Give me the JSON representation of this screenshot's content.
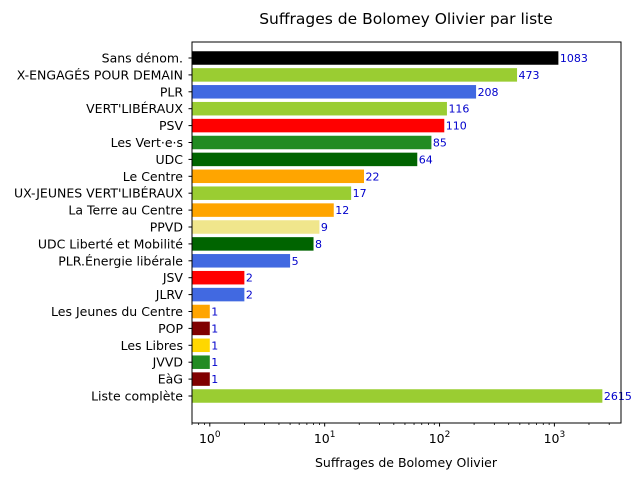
{
  "chart_data": {
    "type": "bar",
    "orientation": "horizontal",
    "title": "Suffrages de Bolomey Olivier par liste",
    "xlabel": "Suffrages de Bolomey Olivier",
    "ylabel": "",
    "xscale": "log",
    "xlim": [
      0.7,
      3800
    ],
    "xticks": [
      {
        "value": 1,
        "base": "10",
        "exp": "0"
      },
      {
        "value": 10,
        "base": "10",
        "exp": "1"
      },
      {
        "value": 100,
        "base": "10",
        "exp": "2"
      },
      {
        "value": 1000,
        "base": "10",
        "exp": "3"
      }
    ],
    "grid": false,
    "bars": [
      {
        "label": "Sans dénom.",
        "value": 1083,
        "value_label": "1083",
        "color": "#000000"
      },
      {
        "label": "X-ENGAGÉS POUR DEMAIN",
        "value": 473,
        "value_label": "473",
        "color": "#9acd32"
      },
      {
        "label": "PLR",
        "value": 208,
        "value_label": "208",
        "color": "#4169e1"
      },
      {
        "label": "VERT'LIBÉRAUX",
        "value": 116,
        "value_label": "116",
        "color": "#9acd32"
      },
      {
        "label": "PSV",
        "value": 110,
        "value_label": "110",
        "color": "#ff0000"
      },
      {
        "label": "Les Vert·e·s",
        "value": 85,
        "value_label": "85",
        "color": "#228b22"
      },
      {
        "label": "UDC",
        "value": 64,
        "value_label": "64",
        "color": "#006400"
      },
      {
        "label": "Le Centre",
        "value": 22,
        "value_label": "22",
        "color": "#ffa500"
      },
      {
        "label": "UX-JEUNES VERT'LIBÉRAUX",
        "value": 17,
        "value_label": "17",
        "color": "#9acd32"
      },
      {
        "label": "La Terre au Centre",
        "value": 12,
        "value_label": "12",
        "color": "#ffa500"
      },
      {
        "label": "PPVD",
        "value": 9,
        "value_label": "9",
        "color": "#f0e68c"
      },
      {
        "label": "UDC Liberté et Mobilité",
        "value": 8,
        "value_label": "8",
        "color": "#006400"
      },
      {
        "label": "PLR.Énergie libérale",
        "value": 5,
        "value_label": "5",
        "color": "#4169e1"
      },
      {
        "label": "JSV",
        "value": 2,
        "value_label": "2",
        "color": "#ff0000"
      },
      {
        "label": "JLRV",
        "value": 2,
        "value_label": "2",
        "color": "#4169e1"
      },
      {
        "label": "Les Jeunes du Centre",
        "value": 1,
        "value_label": "1",
        "color": "#ffa500"
      },
      {
        "label": "POP",
        "value": 1,
        "value_label": "1",
        "color": "#800000"
      },
      {
        "label": "Les Libres",
        "value": 1,
        "value_label": "1",
        "color": "#ffd700"
      },
      {
        "label": "JVVD",
        "value": 1,
        "value_label": "1",
        "color": "#228b22"
      },
      {
        "label": "EàG",
        "value": 1,
        "value_label": "1",
        "color": "#800000"
      },
      {
        "label": "Liste complète",
        "value": 2615,
        "value_label": "2615",
        "color": "#9acd32"
      }
    ]
  }
}
